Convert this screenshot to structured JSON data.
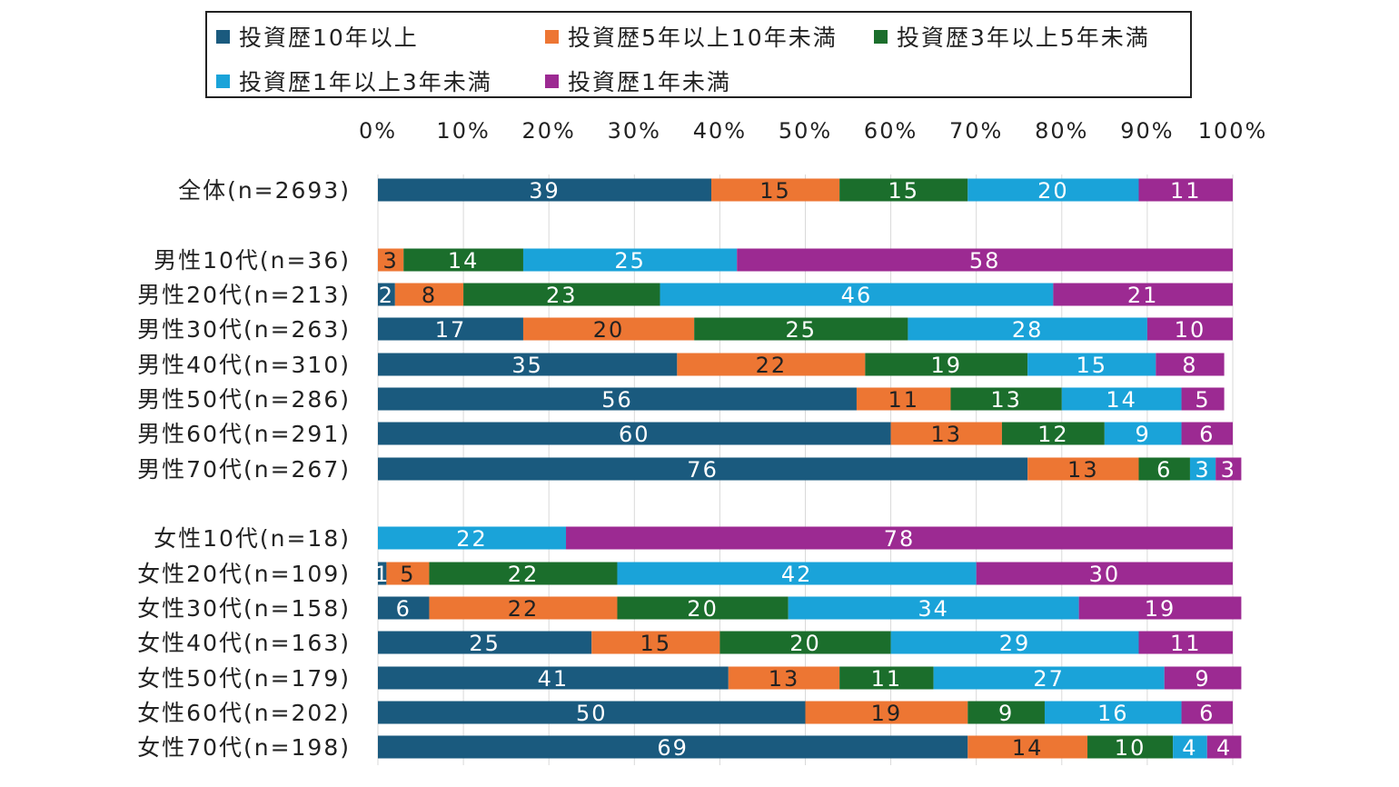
{
  "chart_data": {
    "type": "bar",
    "orientation": "horizontal",
    "stacked": true,
    "percent_stacked": true,
    "title": "",
    "xlabel": "",
    "ylabel": "",
    "xlim": [
      0,
      100
    ],
    "ticks": [
      "0%",
      "10%",
      "20%",
      "30%",
      "40%",
      "50%",
      "60%",
      "70%",
      "80%",
      "90%",
      "100%"
    ],
    "legend_position": "top",
    "categories": [
      "全体(n=2693)",
      "男性10代(n=36)",
      "男性20代(n=213)",
      "男性30代(n=263)",
      "男性40代(n=310)",
      "男性50代(n=286)",
      "男性60代(n=291)",
      "男性70代(n=267)",
      "女性10代(n=18)",
      "女性20代(n=109)",
      "女性30代(n=158)",
      "女性40代(n=163)",
      "女性50代(n=179)",
      "女性60代(n=202)",
      "女性70代(n=198)"
    ],
    "series": [
      {
        "name": "投資歴10年以上",
        "color": "#1a5a7e",
        "values": [
          39,
          0,
          2,
          17,
          35,
          56,
          60,
          76,
          0,
          1,
          6,
          25,
          41,
          50,
          69
        ]
      },
      {
        "name": "投資歴5年以上10年未満",
        "color": "#ed7633",
        "values": [
          15,
          3,
          8,
          20,
          22,
          11,
          13,
          13,
          0,
          5,
          22,
          15,
          13,
          19,
          14
        ]
      },
      {
        "name": "投資歴3年以上5年未満",
        "color": "#1b6e2c",
        "values": [
          15,
          14,
          23,
          25,
          19,
          13,
          12,
          6,
          0,
          22,
          20,
          20,
          11,
          9,
          10
        ]
      },
      {
        "name": "投資歴1年以上3年未満",
        "color": "#1aa3d9",
        "values": [
          20,
          25,
          46,
          28,
          15,
          14,
          9,
          3,
          22,
          42,
          34,
          29,
          27,
          16,
          4
        ]
      },
      {
        "name": "投資歴1年未満",
        "color": "#9c2a92",
        "values": [
          11,
          58,
          21,
          10,
          8,
          5,
          6,
          3,
          78,
          30,
          19,
          11,
          9,
          6,
          4
        ]
      }
    ]
  }
}
